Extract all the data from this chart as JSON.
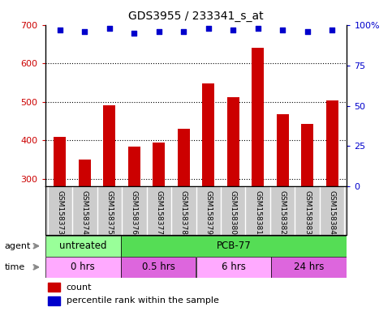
{
  "title": "GDS3955 / 233341_s_at",
  "samples": [
    "GSM158373",
    "GSM158374",
    "GSM158375",
    "GSM158376",
    "GSM158377",
    "GSM158378",
    "GSM158379",
    "GSM158380",
    "GSM158381",
    "GSM158382",
    "GSM158383",
    "GSM158384"
  ],
  "counts": [
    410,
    350,
    492,
    383,
    395,
    430,
    548,
    513,
    640,
    468,
    442,
    503
  ],
  "percentiles": [
    97,
    96,
    98,
    95,
    96,
    96,
    98,
    97,
    98,
    97,
    96,
    97
  ],
  "ylim_left": [
    280,
    700
  ],
  "ylim_right": [
    0,
    100
  ],
  "yticks_left": [
    300,
    400,
    500,
    600,
    700
  ],
  "yticks_right": [
    0,
    25,
    50,
    75,
    100
  ],
  "bar_color": "#cc0000",
  "dot_color": "#0000cc",
  "agent_groups": [
    {
      "label": "untreated",
      "start": 0,
      "end": 3,
      "color": "#99ff99"
    },
    {
      "label": "PCB-77",
      "start": 3,
      "end": 12,
      "color": "#55dd55"
    }
  ],
  "time_groups": [
    {
      "label": "0 hrs",
      "start": 0,
      "end": 3,
      "color": "#ffaaff"
    },
    {
      "label": "0.5 hrs",
      "start": 3,
      "end": 6,
      "color": "#dd66dd"
    },
    {
      "label": "6 hrs",
      "start": 6,
      "end": 9,
      "color": "#ffaaff"
    },
    {
      "label": "24 hrs",
      "start": 9,
      "end": 12,
      "color": "#dd66dd"
    }
  ],
  "left_axis_color": "#cc0000",
  "right_axis_color": "#0000cc",
  "bar_width": 0.5,
  "xtick_bg": "#cccccc",
  "grid_dotted_color": "black"
}
